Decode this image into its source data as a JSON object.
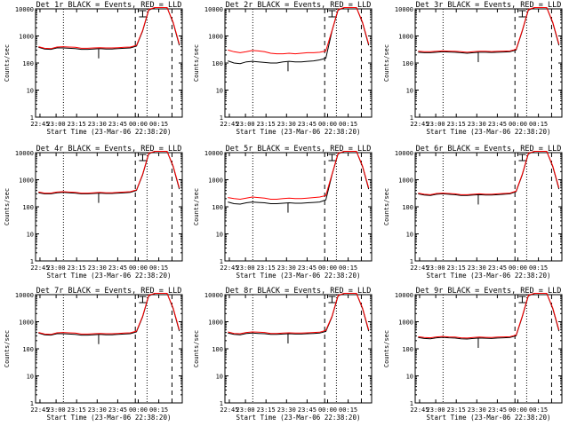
{
  "chart_data": [
    {
      "type": "line",
      "title": "Det 1r BLACK = Events, RED = LLD",
      "xlabel": "Start Time (23-Mar-06 22:38:20)",
      "ylabel": "Counts/sec",
      "x_ticks": [
        "22:45",
        "23:00",
        "23:15",
        "23:30",
        "23:45",
        "00:00",
        "00:15"
      ],
      "y_ticks": [
        "1",
        "10",
        "100",
        "1000",
        "10000"
      ],
      "yscale": "log",
      "ylim": [
        1,
        10000
      ],
      "series": [
        {
          "color": "#000000",
          "values": [
            380,
            330,
            320,
            360,
            360,
            350,
            340,
            320,
            320,
            330,
            340,
            330,
            330,
            340,
            350,
            360,
            420,
            1500,
            9000,
            12000,
            12000,
            12000,
            3000,
            450
          ]
        },
        {
          "color": "#ff0000",
          "values": [
            400,
            350,
            340,
            390,
            400,
            390,
            380,
            350,
            350,
            360,
            370,
            360,
            360,
            370,
            380,
            390,
            450,
            1600,
            9500,
            12000,
            12000,
            12000,
            3200,
            500
          ]
        }
      ]
    },
    {
      "type": "line",
      "title": "Det 2r BLACK = Events, RED = LLD",
      "xlabel": "Start Time (23-Mar-06 22:38:20)",
      "ylabel": "Counts/sec",
      "x_ticks": [
        "22:45",
        "23:00",
        "23:15",
        "23:30",
        "23:45",
        "00:00",
        "00:15"
      ],
      "y_ticks": [
        "1",
        "10",
        "100",
        "1000",
        "10000"
      ],
      "yscale": "log",
      "ylim": [
        1,
        10000
      ],
      "series": [
        {
          "color": "#000000",
          "values": [
            120,
            100,
            95,
            110,
            115,
            110,
            105,
            100,
            100,
            110,
            115,
            110,
            110,
            115,
            120,
            130,
            150,
            1500,
            9000,
            12000,
            12000,
            12000,
            3000,
            450
          ]
        },
        {
          "color": "#ff0000",
          "values": [
            300,
            260,
            240,
            260,
            290,
            280,
            260,
            230,
            220,
            220,
            230,
            220,
            230,
            240,
            240,
            250,
            280,
            1600,
            9500,
            12000,
            12000,
            12000,
            3200,
            500
          ]
        }
      ]
    },
    {
      "type": "line",
      "title": "Det 3r BLACK = Events, RED = LLD",
      "xlabel": "Start Time (23-Mar-06 22:38:20)",
      "ylabel": "Counts/sec",
      "x_ticks": [
        "22:45",
        "23:00",
        "23:15",
        "23:30",
        "23:45",
        "00:00",
        "00:15"
      ],
      "y_ticks": [
        "1",
        "10",
        "100",
        "1000",
        "10000"
      ],
      "yscale": "log",
      "ylim": [
        1,
        10000
      ],
      "series": [
        {
          "color": "#000000",
          "values": [
            250,
            240,
            240,
            250,
            260,
            255,
            250,
            240,
            230,
            240,
            250,
            250,
            245,
            250,
            255,
            260,
            300,
            1500,
            9000,
            12000,
            12000,
            12000,
            3000,
            450
          ]
        },
        {
          "color": "#ff0000",
          "values": [
            270,
            260,
            260,
            270,
            280,
            275,
            270,
            260,
            250,
            260,
            270,
            270,
            265,
            270,
            275,
            280,
            320,
            1600,
            9500,
            12000,
            12000,
            12000,
            3200,
            500
          ]
        }
      ]
    },
    {
      "type": "line",
      "title": "Det 4r BLACK = Events, RED = LLD",
      "xlabel": "Start Time (23-Mar-06 22:38:20)",
      "ylabel": "Counts/sec",
      "x_ticks": [
        "22:45",
        "23:00",
        "23:15",
        "23:30",
        "23:45",
        "00:00",
        "00:15"
      ],
      "y_ticks": [
        "1",
        "10",
        "100",
        "1000",
        "10000"
      ],
      "yscale": "log",
      "ylim": [
        1,
        10000
      ],
      "series": [
        {
          "color": "#000000",
          "values": [
            330,
            300,
            300,
            330,
            340,
            330,
            320,
            300,
            300,
            310,
            320,
            310,
            310,
            320,
            330,
            340,
            400,
            1500,
            9000,
            12000,
            12000,
            12000,
            3000,
            450
          ]
        },
        {
          "color": "#ff0000",
          "values": [
            350,
            320,
            320,
            350,
            360,
            350,
            340,
            320,
            320,
            330,
            340,
            330,
            330,
            340,
            350,
            360,
            420,
            1600,
            9500,
            12000,
            12000,
            12000,
            3200,
            500
          ]
        }
      ]
    },
    {
      "type": "line",
      "title": "Det 5r BLACK = Events, RED = LLD",
      "xlabel": "Start Time (23-Mar-06 22:38:20)",
      "ylabel": "Counts/sec",
      "x_ticks": [
        "22:45",
        "23:00",
        "23:15",
        "23:30",
        "23:45",
        "00:00",
        "00:15"
      ],
      "y_ticks": [
        "1",
        "10",
        "100",
        "1000",
        "10000"
      ],
      "yscale": "log",
      "ylim": [
        1,
        10000
      ],
      "series": [
        {
          "color": "#000000",
          "values": [
            150,
            130,
            125,
            140,
            150,
            145,
            140,
            130,
            130,
            135,
            140,
            135,
            135,
            140,
            145,
            150,
            180,
            1500,
            9000,
            12000,
            12000,
            12000,
            3000,
            450
          ]
        },
        {
          "color": "#ff0000",
          "values": [
            220,
            200,
            190,
            210,
            230,
            220,
            210,
            190,
            190,
            200,
            210,
            200,
            200,
            210,
            220,
            230,
            260,
            1600,
            9500,
            12000,
            12000,
            12000,
            3200,
            500
          ]
        }
      ]
    },
    {
      "type": "line",
      "title": "Det 6r BLACK = Events, RED = LLD",
      "xlabel": "Start Time (23-Mar-06 22:38:20)",
      "ylabel": "Counts/sec",
      "x_ticks": [
        "22:45",
        "23:00",
        "23:15",
        "23:30",
        "23:45",
        "00:00",
        "00:15"
      ],
      "y_ticks": [
        "1",
        "10",
        "100",
        "1000",
        "10000"
      ],
      "yscale": "log",
      "ylim": [
        1,
        10000
      ],
      "series": [
        {
          "color": "#000000",
          "values": [
            300,
            270,
            260,
            290,
            300,
            290,
            280,
            260,
            260,
            270,
            280,
            270,
            270,
            280,
            290,
            300,
            360,
            1500,
            9000,
            12000,
            12000,
            12000,
            3000,
            450
          ]
        },
        {
          "color": "#ff0000",
          "values": [
            320,
            290,
            280,
            310,
            320,
            310,
            300,
            280,
            280,
            290,
            300,
            290,
            290,
            300,
            310,
            320,
            380,
            1600,
            9500,
            12000,
            12000,
            12000,
            3200,
            500
          ]
        }
      ]
    },
    {
      "type": "line",
      "title": "Det 7r BLACK = Events, RED = LLD",
      "xlabel": "Start Time (23-Mar-06 22:38:20)",
      "ylabel": "Counts/sec",
      "x_ticks": [
        "22:45",
        "23:00",
        "23:15",
        "23:30",
        "23:45",
        "00:00",
        "00:15"
      ],
      "y_ticks": [
        "1",
        "10",
        "100",
        "1000",
        "10000"
      ],
      "yscale": "log",
      "ylim": [
        1,
        10000
      ],
      "series": [
        {
          "color": "#000000",
          "values": [
            380,
            330,
            320,
            360,
            360,
            350,
            340,
            320,
            320,
            330,
            340,
            330,
            330,
            340,
            350,
            360,
            420,
            1500,
            9000,
            12000,
            12000,
            12000,
            3000,
            450
          ]
        },
        {
          "color": "#ff0000",
          "values": [
            400,
            350,
            340,
            390,
            400,
            390,
            380,
            350,
            350,
            360,
            370,
            360,
            360,
            370,
            380,
            390,
            450,
            1600,
            9500,
            12000,
            12000,
            12000,
            3200,
            500
          ]
        }
      ]
    },
    {
      "type": "line",
      "title": "Det 8r BLACK = Events, RED = LLD",
      "xlabel": "Start Time (23-Mar-06 22:38:20)",
      "ylabel": "Counts/sec",
      "x_ticks": [
        "22:45",
        "23:00",
        "23:15",
        "23:30",
        "23:45",
        "00:00",
        "00:15"
      ],
      "y_ticks": [
        "1",
        "10",
        "100",
        "1000",
        "10000"
      ],
      "yscale": "log",
      "ylim": [
        1,
        10000
      ],
      "series": [
        {
          "color": "#000000",
          "values": [
            380,
            340,
            330,
            370,
            380,
            370,
            360,
            340,
            340,
            350,
            360,
            350,
            350,
            360,
            370,
            380,
            440,
            1500,
            9000,
            12000,
            12000,
            12000,
            3000,
            450
          ]
        },
        {
          "color": "#ff0000",
          "values": [
            420,
            370,
            360,
            400,
            420,
            410,
            400,
            370,
            370,
            380,
            390,
            380,
            380,
            390,
            400,
            410,
            480,
            1600,
            9500,
            12000,
            12000,
            12000,
            3200,
            500
          ]
        }
      ]
    },
    {
      "type": "line",
      "title": "Det 9r BLACK = Events, RED = LLD",
      "xlabel": "Start Time (23-Mar-06 22:38:20)",
      "ylabel": "Counts/sec",
      "x_ticks": [
        "22:45",
        "23:00",
        "23:15",
        "23:30",
        "23:45",
        "00:00",
        "00:15"
      ],
      "y_ticks": [
        "1",
        "10",
        "100",
        "1000",
        "10000"
      ],
      "yscale": "log",
      "ylim": [
        1,
        10000
      ],
      "series": [
        {
          "color": "#000000",
          "values": [
            260,
            240,
            235,
            255,
            265,
            255,
            250,
            235,
            230,
            240,
            250,
            245,
            240,
            250,
            255,
            260,
            300,
            1500,
            9000,
            12000,
            12000,
            12000,
            3000,
            450
          ]
        },
        {
          "color": "#ff0000",
          "values": [
            280,
            260,
            255,
            275,
            285,
            275,
            270,
            255,
            250,
            260,
            270,
            265,
            260,
            270,
            275,
            280,
            320,
            1600,
            9500,
            12000,
            12000,
            12000,
            3200,
            500
          ]
        }
      ]
    }
  ]
}
